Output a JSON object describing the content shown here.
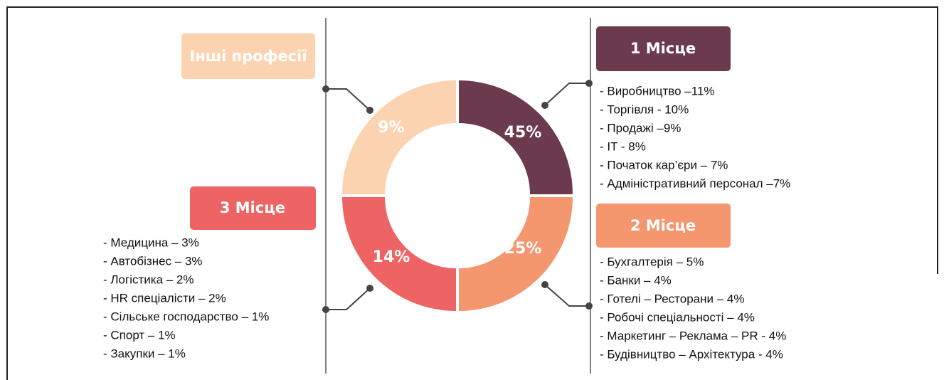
{
  "donut": {
    "segments": [
      {
        "label": "45%"
      },
      {
        "label": "25%"
      },
      {
        "label": "14%"
      },
      {
        "label": "9%"
      }
    ]
  },
  "groups": [
    {
      "title": "1 Місце",
      "items": [
        "- Виробництво –11%",
        "- Торгівля - 10%",
        "- Продажі –9%",
        "- IT - 8%",
        "- Початок кар’єри – 7%",
        "- Адміністративний персонал –7%"
      ]
    },
    {
      "title": "2 Місце",
      "items": [
        "- Бухгалтерія – 5%",
        "- Банки – 4%",
        "- Готелі – Ресторани – 4%",
        "- Робочі спеціальності – 4%",
        "- Маркетинг – Реклама – PR - 4%",
        "- Будівництво – Архітектура - 4%"
      ]
    },
    {
      "title": "3 Місце",
      "items": [
        "- Медицина – 3%",
        "- Автобізнес – 3%",
        "- Логістика – 2%",
        "- HR спеціалісти – 2%",
        "- Сільське господарство – 1%",
        "- Спорт – 1%",
        "- Закупки – 1%"
      ]
    },
    {
      "title": "Інші професії"
    }
  ]
}
